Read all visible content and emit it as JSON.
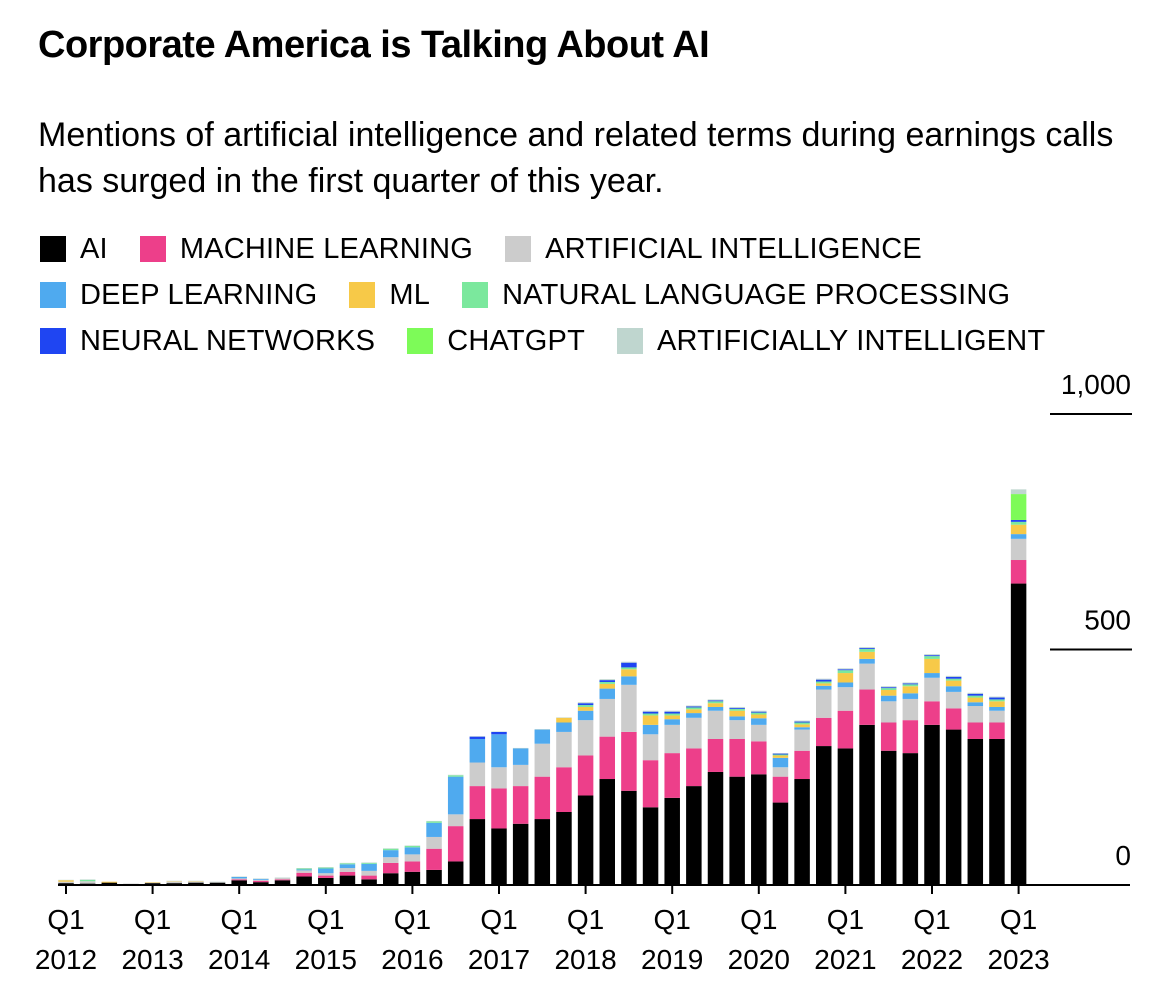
{
  "chart_data": {
    "type": "bar",
    "stacked": true,
    "title": "Corporate America is Talking About AI",
    "subtitle": "Mentions of artificial intelligence and related terms during earnings calls has surged in the first quarter of this year.",
    "xlabel": "",
    "ylabel": "",
    "ylim": [
      0,
      1000
    ],
    "yticks": [
      {
        "value": 0,
        "label": "0"
      },
      {
        "value": 500,
        "label": "500"
      },
      {
        "value": 1000,
        "label": "1,000"
      }
    ],
    "x_tick_labels": [
      {
        "index": 0,
        "quarter": "Q1",
        "year": "2012"
      },
      {
        "index": 4,
        "quarter": "Q1",
        "year": "2013"
      },
      {
        "index": 8,
        "quarter": "Q1",
        "year": "2014"
      },
      {
        "index": 12,
        "quarter": "Q1",
        "year": "2015"
      },
      {
        "index": 16,
        "quarter": "Q1",
        "year": "2016"
      },
      {
        "index": 20,
        "quarter": "Q1",
        "year": "2017"
      },
      {
        "index": 24,
        "quarter": "Q1",
        "year": "2018"
      },
      {
        "index": 28,
        "quarter": "Q1",
        "year": "2019"
      },
      {
        "index": 32,
        "quarter": "Q1",
        "year": "2020"
      },
      {
        "index": 36,
        "quarter": "Q1",
        "year": "2021"
      },
      {
        "index": 40,
        "quarter": "Q1",
        "year": "2022"
      },
      {
        "index": 44,
        "quarter": "Q1",
        "year": "2023"
      }
    ],
    "categories": [
      "Q1 2012",
      "Q2 2012",
      "Q3 2012",
      "Q4 2012",
      "Q1 2013",
      "Q2 2013",
      "Q3 2013",
      "Q4 2013",
      "Q1 2014",
      "Q2 2014",
      "Q3 2014",
      "Q4 2014",
      "Q1 2015",
      "Q2 2015",
      "Q3 2015",
      "Q4 2015",
      "Q1 2016",
      "Q2 2016",
      "Q3 2016",
      "Q4 2016",
      "Q1 2017",
      "Q2 2017",
      "Q3 2017",
      "Q4 2017",
      "Q1 2018",
      "Q2 2018",
      "Q3 2018",
      "Q4 2018",
      "Q1 2019",
      "Q2 2019",
      "Q3 2019",
      "Q4 2019",
      "Q1 2020",
      "Q2 2020",
      "Q3 2020",
      "Q4 2020",
      "Q1 2021",
      "Q2 2021",
      "Q3 2021",
      "Q4 2021",
      "Q1 2022",
      "Q2 2022",
      "Q3 2022",
      "Q4 2022",
      "Q1 2023"
    ],
    "series": [
      {
        "name": "AI",
        "color": "#000000",
        "values": [
          4,
          3,
          5,
          2,
          4,
          4,
          5,
          5,
          10,
          6,
          10,
          18,
          15,
          20,
          12,
          25,
          28,
          32,
          50,
          140,
          120,
          130,
          140,
          155,
          190,
          225,
          200,
          165,
          185,
          210,
          240,
          230,
          235,
          175,
          225,
          295,
          290,
          340,
          285,
          280,
          340,
          330,
          310,
          310,
          640
        ]
      },
      {
        "name": "MACHINE LEARNING",
        "color": "#ed3f8a",
        "values": [
          0,
          0,
          0,
          0,
          0,
          0,
          0,
          0,
          2,
          3,
          2,
          8,
          5,
          8,
          8,
          22,
          22,
          45,
          75,
          70,
          85,
          80,
          90,
          95,
          85,
          90,
          125,
          100,
          95,
          80,
          70,
          80,
          70,
          55,
          60,
          60,
          80,
          75,
          60,
          70,
          50,
          45,
          35,
          35,
          50
        ]
      },
      {
        "name": "ARTIFICIAL INTELLIGENCE",
        "color": "#cccccc",
        "values": [
          3,
          5,
          0,
          1,
          1,
          3,
          2,
          1,
          2,
          2,
          3,
          5,
          5,
          8,
          10,
          12,
          15,
          25,
          25,
          50,
          45,
          45,
          70,
          75,
          75,
          80,
          100,
          55,
          60,
          65,
          60,
          40,
          35,
          20,
          45,
          60,
          50,
          55,
          45,
          45,
          50,
          35,
          35,
          25,
          45
        ]
      },
      {
        "name": "DEEP LEARNING",
        "color": "#4faaef",
        "values": [
          0,
          0,
          0,
          0,
          0,
          0,
          0,
          0,
          3,
          2,
          0,
          2,
          10,
          8,
          15,
          15,
          15,
          30,
          80,
          50,
          70,
          35,
          30,
          20,
          20,
          22,
          18,
          20,
          12,
          10,
          8,
          8,
          14,
          20,
          5,
          8,
          10,
          10,
          12,
          12,
          10,
          12,
          8,
          8,
          10
        ]
      },
      {
        "name": "ML",
        "color": "#f7c948",
        "values": [
          3,
          0,
          2,
          0,
          1,
          1,
          1,
          0,
          0,
          0,
          0,
          0,
          0,
          0,
          0,
          0,
          0,
          0,
          0,
          0,
          0,
          0,
          0,
          10,
          8,
          10,
          15,
          20,
          8,
          8,
          8,
          12,
          8,
          5,
          6,
          5,
          20,
          15,
          12,
          15,
          30,
          12,
          10,
          12,
          20
        ]
      },
      {
        "name": "NATURAL LANGUAGE PROCESSING",
        "color": "#7be89d",
        "values": [
          0,
          3,
          0,
          0,
          0,
          0,
          0,
          0,
          0,
          0,
          0,
          2,
          2,
          2,
          2,
          3,
          3,
          3,
          3,
          0,
          0,
          0,
          0,
          0,
          4,
          4,
          4,
          4,
          4,
          4,
          4,
          4,
          4,
          2,
          4,
          4,
          6,
          6,
          4,
          4,
          6,
          4,
          4,
          4,
          6
        ]
      },
      {
        "name": "NEURAL NETWORKS",
        "color": "#1f45f2",
        "values": [
          0,
          0,
          0,
          0,
          0,
          0,
          0,
          0,
          0,
          0,
          0,
          0,
          0,
          0,
          0,
          0,
          0,
          0,
          0,
          5,
          5,
          0,
          0,
          0,
          4,
          4,
          10,
          4,
          4,
          2,
          2,
          2,
          2,
          2,
          2,
          4,
          2,
          2,
          2,
          2,
          2,
          4,
          4,
          4,
          4
        ]
      },
      {
        "name": "CHATGPT",
        "color": "#7dfb58",
        "values": [
          0,
          0,
          0,
          0,
          0,
          0,
          0,
          0,
          0,
          0,
          0,
          0,
          0,
          0,
          0,
          0,
          0,
          0,
          0,
          0,
          0,
          0,
          0,
          0,
          0,
          0,
          0,
          0,
          0,
          0,
          0,
          0,
          0,
          0,
          0,
          0,
          0,
          0,
          0,
          0,
          0,
          0,
          0,
          0,
          55
        ]
      },
      {
        "name": "ARTIFICIALLY INTELLIGENT",
        "color": "#bfd6cf",
        "values": [
          1,
          1,
          0,
          0,
          0,
          1,
          1,
          1,
          1,
          1,
          1,
          1,
          1,
          1,
          1,
          1,
          1,
          1,
          1,
          1,
          1,
          1,
          1,
          1,
          2,
          2,
          2,
          2,
          2,
          2,
          2,
          2,
          2,
          1,
          2,
          2,
          2,
          2,
          2,
          2,
          2,
          2,
          2,
          2,
          10
        ]
      }
    ],
    "legend_rows": [
      [
        0,
        1,
        2
      ],
      [
        3,
        4,
        5
      ],
      [
        6,
        7,
        8
      ]
    ],
    "legend_position": "top-left",
    "grid": false
  }
}
